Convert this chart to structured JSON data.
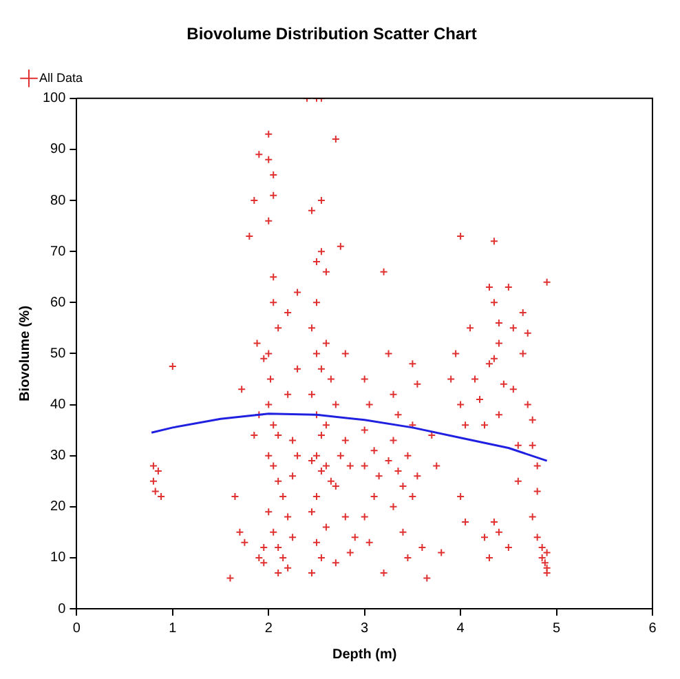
{
  "chart_data": {
    "type": "scatter",
    "title": "Biovolume Distribution Scatter Chart",
    "xlabel": "Depth (m)",
    "ylabel": "Biovolume (%)",
    "xlim": [
      0,
      6
    ],
    "xticks": [
      0,
      1,
      2,
      3,
      4,
      5,
      6
    ],
    "ylim": [
      0,
      100
    ],
    "yticks": [
      0,
      10,
      20,
      30,
      40,
      50,
      60,
      70,
      80,
      90,
      100
    ],
    "grid": false,
    "legend": "top left",
    "marker": "cross",
    "series": [
      {
        "name": "All Data",
        "color": "#e03030",
        "x": [
          0.8,
          0.85,
          0.8,
          0.82,
          0.88,
          1.0,
          1.6,
          1.65,
          1.7,
          1.75,
          1.72,
          1.8,
          1.85,
          1.9,
          1.95,
          1.9,
          1.85,
          1.9,
          1.95,
          1.95,
          1.88,
          2.0,
          2.0,
          2.05,
          2.0,
          2.05,
          2.05,
          2.05,
          2.1,
          2.0,
          2.02,
          2.0,
          2.05,
          2.1,
          2.0,
          2.05,
          2.1,
          2.15,
          2.0,
          2.05,
          2.1,
          2.2,
          2.15,
          2.1,
          2.25,
          2.2,
          2.25,
          2.3,
          2.25,
          2.2,
          2.3,
          2.2,
          2.3,
          2.4,
          2.5,
          2.55,
          2.55,
          2.5,
          2.45,
          2.55,
          2.6,
          2.5,
          2.45,
          2.6,
          2.5,
          2.55,
          2.65,
          2.45,
          2.5,
          2.6,
          2.55,
          2.5,
          2.45,
          2.6,
          2.55,
          2.65,
          2.5,
          2.45,
          2.6,
          2.5,
          2.55,
          2.7,
          2.45,
          2.7,
          2.75,
          2.8,
          2.7,
          2.8,
          2.75,
          2.85,
          2.7,
          2.8,
          2.9,
          2.85,
          3.0,
          3.05,
          3.0,
          3.1,
          3.0,
          3.15,
          3.1,
          3.0,
          3.05,
          3.2,
          3.2,
          3.25,
          3.3,
          3.35,
          3.3,
          3.25,
          3.35,
          3.4,
          3.3,
          3.4,
          3.45,
          3.5,
          3.55,
          3.5,
          3.45,
          3.55,
          3.5,
          3.6,
          3.65,
          3.7,
          3.75,
          3.8,
          3.9,
          3.95,
          4.0,
          4.0,
          4.05,
          4.0,
          4.05,
          4.1,
          4.15,
          4.2,
          4.25,
          4.25,
          4.3,
          4.3,
          4.35,
          4.3,
          4.35,
          4.4,
          4.4,
          4.35,
          4.45,
          4.4,
          4.35,
          4.4,
          4.5,
          4.55,
          4.55,
          4.6,
          4.5,
          4.6,
          4.65,
          4.7,
          4.65,
          4.7,
          4.75,
          4.75,
          4.8,
          4.8,
          4.75,
          4.8,
          4.85,
          4.9,
          4.9,
          4.85,
          4.9,
          4.9,
          4.88
        ],
        "values": [
          28,
          27,
          25,
          23,
          22,
          47.5,
          6,
          22,
          15,
          13,
          43,
          73,
          80,
          89,
          49,
          38,
          34,
          10,
          12,
          9,
          52,
          93,
          88,
          81,
          76,
          85,
          65,
          60,
          55,
          50,
          45,
          40,
          36,
          34,
          30,
          28,
          25,
          22,
          19,
          15,
          12,
          8,
          10,
          7,
          14,
          18,
          26,
          30,
          33,
          42,
          47,
          58,
          62,
          100,
          100,
          100,
          70,
          68,
          78,
          80,
          66,
          60,
          55,
          52,
          50,
          47,
          45,
          42,
          38,
          36,
          34,
          30,
          29,
          28,
          27,
          25,
          22,
          19,
          16,
          13,
          10,
          9,
          7,
          92,
          71,
          50,
          40,
          33,
          30,
          28,
          24,
          18,
          14,
          11,
          45,
          40,
          35,
          31,
          28,
          26,
          22,
          18,
          13,
          7,
          66,
          50,
          42,
          38,
          33,
          29,
          27,
          24,
          20,
          15,
          10,
          48,
          44,
          36,
          30,
          26,
          22,
          12,
          6,
          34,
          28,
          11,
          45,
          50,
          73,
          40,
          36,
          22,
          17,
          55,
          45,
          41,
          36,
          14,
          48,
          10,
          72,
          63,
          60,
          56,
          52,
          49,
          44,
          38,
          17,
          15,
          63,
          55,
          43,
          32,
          12,
          25,
          58,
          54,
          50,
          40,
          37,
          32,
          28,
          23,
          18,
          14,
          10,
          8,
          7,
          12,
          64,
          11,
          9
        ]
      },
      {
        "type": "line",
        "color": "#2020e0",
        "marker": "none",
        "x": [
          0.78,
          1.0,
          1.5,
          2.0,
          2.5,
          3.0,
          3.5,
          4.0,
          4.5,
          4.9
        ],
        "values": [
          34.5,
          35.5,
          37.2,
          38.2,
          38,
          37,
          35.5,
          33.5,
          31.5,
          29
        ]
      }
    ]
  }
}
